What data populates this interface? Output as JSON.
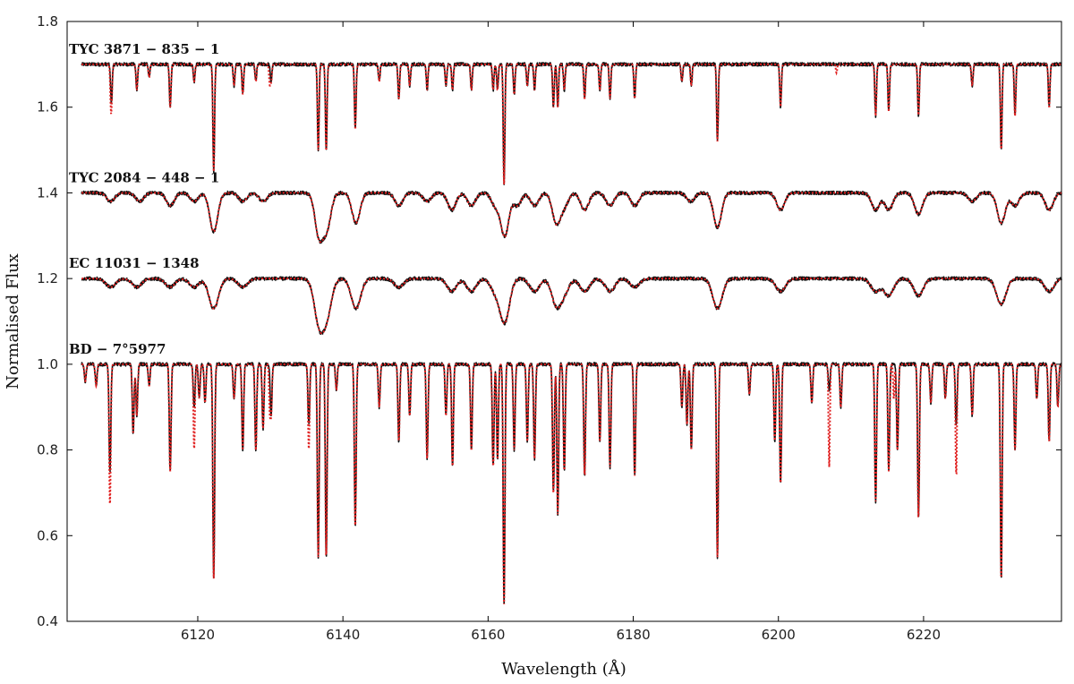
{
  "chart_data": {
    "type": "line",
    "title": "",
    "xlabel": "Wavelength (Å)",
    "ylabel": "Normalised Flux",
    "xlim": [
      6102,
      6239
    ],
    "ylim": [
      0.4,
      1.8
    ],
    "xticks": [
      6120,
      6140,
      6160,
      6180,
      6200,
      6220
    ],
    "yticks": [
      0.4,
      0.6,
      0.8,
      1.0,
      1.2,
      1.4,
      1.6,
      1.8
    ],
    "xtick_labels": [
      "6120",
      "6140",
      "6160",
      "6180",
      "6200",
      "6220"
    ],
    "ytick_labels": [
      "0.4",
      "0.6",
      "0.8",
      "1.0",
      "1.2",
      "1.4",
      "1.6",
      "1.8"
    ],
    "grid": false,
    "legend": "none",
    "colors": {
      "observed": "#111111",
      "model": "#e02020"
    },
    "x_range_plotted": [
      6104,
      6239
    ],
    "series": [
      {
        "name": "TYC 3871 − 835 − 1",
        "continuum": 1.7,
        "line_width": 0.11,
        "noise": 0.004,
        "lines": [
          [
            6108.1,
            0.09
          ],
          [
            6111.6,
            0.06
          ],
          [
            6113.3,
            0.03
          ],
          [
            6116.2,
            0.1
          ],
          [
            6119.5,
            0.04
          ],
          [
            6122.2,
            0.25
          ],
          [
            6125.0,
            0.05
          ],
          [
            6126.2,
            0.07
          ],
          [
            6128.0,
            0.04
          ],
          [
            6130.1,
            0.04
          ],
          [
            6136.6,
            0.2
          ],
          [
            6137.7,
            0.2
          ],
          [
            6141.7,
            0.15
          ],
          [
            6145.0,
            0.04
          ],
          [
            6147.7,
            0.08
          ],
          [
            6149.2,
            0.05
          ],
          [
            6151.6,
            0.06
          ],
          [
            6154.2,
            0.05
          ],
          [
            6155.1,
            0.06
          ],
          [
            6157.7,
            0.06
          ],
          [
            6160.7,
            0.06
          ],
          [
            6161.3,
            0.06
          ],
          [
            6162.2,
            0.28
          ],
          [
            6163.6,
            0.07
          ],
          [
            6165.4,
            0.05
          ],
          [
            6166.4,
            0.06
          ],
          [
            6169.0,
            0.1
          ],
          [
            6169.6,
            0.1
          ],
          [
            6170.5,
            0.06
          ],
          [
            6173.3,
            0.08
          ],
          [
            6175.4,
            0.06
          ],
          [
            6176.8,
            0.08
          ],
          [
            6180.2,
            0.08
          ],
          [
            6186.7,
            0.04
          ],
          [
            6188.0,
            0.05
          ],
          [
            6191.6,
            0.18
          ],
          [
            6200.3,
            0.1
          ],
          [
            6213.4,
            0.12
          ],
          [
            6215.2,
            0.11
          ],
          [
            6219.3,
            0.12
          ],
          [
            6226.7,
            0.05
          ],
          [
            6230.7,
            0.2
          ],
          [
            6232.6,
            0.12
          ],
          [
            6237.3,
            0.1
          ]
        ]
      },
      {
        "name": "TYC 2084 − 448 − 1",
        "continuum": 1.4,
        "line_width": 0.55,
        "noise": 0.004,
        "lines": [
          [
            6108.0,
            0.02
          ],
          [
            6112.0,
            0.02
          ],
          [
            6116.2,
            0.03
          ],
          [
            6119.5,
            0.02
          ],
          [
            6122.2,
            0.09
          ],
          [
            6126.2,
            0.02
          ],
          [
            6129.0,
            0.02
          ],
          [
            6136.7,
            0.1
          ],
          [
            6137.8,
            0.08
          ],
          [
            6141.8,
            0.07
          ],
          [
            6147.7,
            0.03
          ],
          [
            6151.6,
            0.02
          ],
          [
            6155.0,
            0.04
          ],
          [
            6157.7,
            0.03
          ],
          [
            6161.0,
            0.03
          ],
          [
            6162.3,
            0.1
          ],
          [
            6164.0,
            0.03
          ],
          [
            6166.4,
            0.03
          ],
          [
            6169.4,
            0.07
          ],
          [
            6170.5,
            0.03
          ],
          [
            6173.3,
            0.04
          ],
          [
            6176.8,
            0.03
          ],
          [
            6180.2,
            0.03
          ],
          [
            6187.9,
            0.02
          ],
          [
            6191.6,
            0.08
          ],
          [
            6200.3,
            0.04
          ],
          [
            6213.4,
            0.04
          ],
          [
            6215.2,
            0.04
          ],
          [
            6219.3,
            0.05
          ],
          [
            6226.7,
            0.02
          ],
          [
            6230.7,
            0.07
          ],
          [
            6232.6,
            0.03
          ],
          [
            6237.3,
            0.04
          ]
        ]
      },
      {
        "name": "EC 11031 − 1348",
        "continuum": 1.2,
        "line_width": 0.65,
        "noise": 0.004,
        "lines": [
          [
            6108.0,
            0.02
          ],
          [
            6111.6,
            0.02
          ],
          [
            6116.2,
            0.02
          ],
          [
            6119.5,
            0.02
          ],
          [
            6122.2,
            0.07
          ],
          [
            6126.2,
            0.02
          ],
          [
            6136.7,
            0.1
          ],
          [
            6137.8,
            0.08
          ],
          [
            6141.8,
            0.07
          ],
          [
            6147.7,
            0.02
          ],
          [
            6155.0,
            0.03
          ],
          [
            6157.7,
            0.03
          ],
          [
            6161.0,
            0.03
          ],
          [
            6162.3,
            0.1
          ],
          [
            6166.4,
            0.03
          ],
          [
            6169.4,
            0.06
          ],
          [
            6170.5,
            0.03
          ],
          [
            6173.3,
            0.03
          ],
          [
            6176.8,
            0.03
          ],
          [
            6180.2,
            0.02
          ],
          [
            6191.6,
            0.07
          ],
          [
            6200.3,
            0.03
          ],
          [
            6213.4,
            0.03
          ],
          [
            6215.2,
            0.04
          ],
          [
            6219.3,
            0.04
          ],
          [
            6230.7,
            0.06
          ],
          [
            6237.3,
            0.03
          ]
        ]
      },
      {
        "name": "BD − 7°5977",
        "continuum": 1.0,
        "line_width": 0.12,
        "noise": 0.004,
        "lines": [
          [
            6104.5,
            0.04
          ],
          [
            6106.0,
            0.05
          ],
          [
            6107.9,
            0.25
          ],
          [
            6111.1,
            0.16
          ],
          [
            6111.6,
            0.12
          ],
          [
            6113.3,
            0.05
          ],
          [
            6116.2,
            0.25
          ],
          [
            6119.5,
            0.1
          ],
          [
            6120.2,
            0.08
          ],
          [
            6121.0,
            0.09
          ],
          [
            6122.2,
            0.5
          ],
          [
            6125.0,
            0.08
          ],
          [
            6126.2,
            0.2
          ],
          [
            6128.0,
            0.2
          ],
          [
            6129.0,
            0.15
          ],
          [
            6130.1,
            0.12
          ],
          [
            6135.3,
            0.14
          ],
          [
            6136.6,
            0.45
          ],
          [
            6137.7,
            0.45
          ],
          [
            6139.1,
            0.06
          ],
          [
            6141.7,
            0.38
          ],
          [
            6145.0,
            0.1
          ],
          [
            6147.7,
            0.18
          ],
          [
            6149.2,
            0.12
          ],
          [
            6151.6,
            0.22
          ],
          [
            6154.2,
            0.12
          ],
          [
            6155.1,
            0.24
          ],
          [
            6157.7,
            0.2
          ],
          [
            6160.7,
            0.24
          ],
          [
            6161.3,
            0.22
          ],
          [
            6162.2,
            0.56
          ],
          [
            6163.6,
            0.2
          ],
          [
            6165.4,
            0.18
          ],
          [
            6166.4,
            0.22
          ],
          [
            6169.0,
            0.3
          ],
          [
            6169.6,
            0.35
          ],
          [
            6170.5,
            0.25
          ],
          [
            6173.3,
            0.26
          ],
          [
            6175.4,
            0.18
          ],
          [
            6176.8,
            0.24
          ],
          [
            6180.2,
            0.26
          ],
          [
            6186.7,
            0.1
          ],
          [
            6187.4,
            0.14
          ],
          [
            6188.0,
            0.2
          ],
          [
            6191.6,
            0.45
          ],
          [
            6196.0,
            0.07
          ],
          [
            6199.5,
            0.18
          ],
          [
            6200.3,
            0.28
          ],
          [
            6204.6,
            0.09
          ],
          [
            6207.0,
            0.06
          ],
          [
            6208.6,
            0.1
          ],
          [
            6213.4,
            0.32
          ],
          [
            6215.2,
            0.25
          ],
          [
            6216.4,
            0.2
          ],
          [
            6219.3,
            0.36
          ],
          [
            6221.0,
            0.09
          ],
          [
            6223.0,
            0.08
          ],
          [
            6224.5,
            0.14
          ],
          [
            6226.7,
            0.12
          ],
          [
            6230.7,
            0.5
          ],
          [
            6232.6,
            0.2
          ],
          [
            6235.6,
            0.08
          ],
          [
            6237.3,
            0.18
          ],
          [
            6238.5,
            0.1
          ]
        ]
      }
    ],
    "model_only_lines": [
      [
        0,
        6108.0,
        0.04
      ],
      [
        0,
        6129.9,
        0.04
      ],
      [
        0,
        6208.0,
        0.02
      ],
      [
        3,
        6107.9,
        0.08
      ],
      [
        3,
        6119.5,
        0.1
      ],
      [
        3,
        6129.9,
        0.08
      ],
      [
        3,
        6135.3,
        0.06
      ],
      [
        3,
        6207.0,
        0.18
      ],
      [
        3,
        6215.9,
        0.08
      ],
      [
        3,
        6224.5,
        0.12
      ]
    ]
  }
}
